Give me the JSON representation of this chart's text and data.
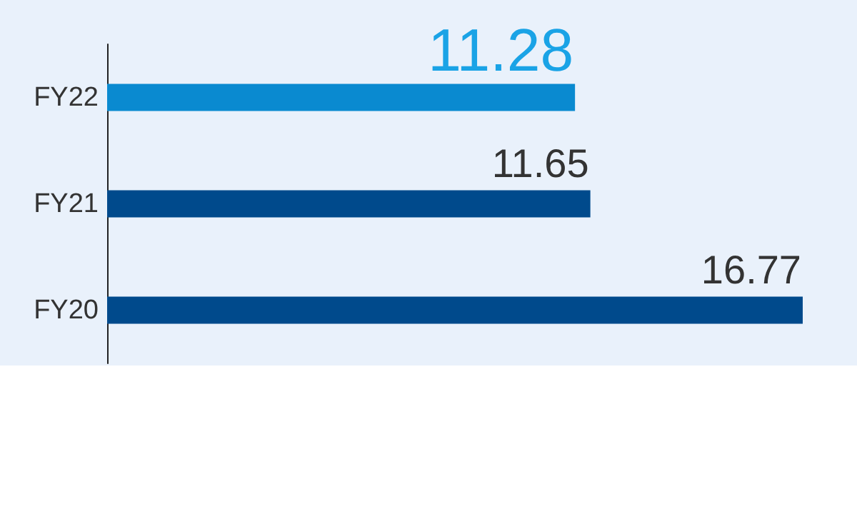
{
  "chart_data": {
    "type": "bar",
    "orientation": "horizontal",
    "categories": [
      "FY22",
      "FY21",
      "FY20"
    ],
    "values": [
      11.28,
      11.65,
      16.77
    ],
    "colors": [
      "#0a8ad0",
      "#004a8c",
      "#004a8c"
    ],
    "data_labels": true
  }
}
